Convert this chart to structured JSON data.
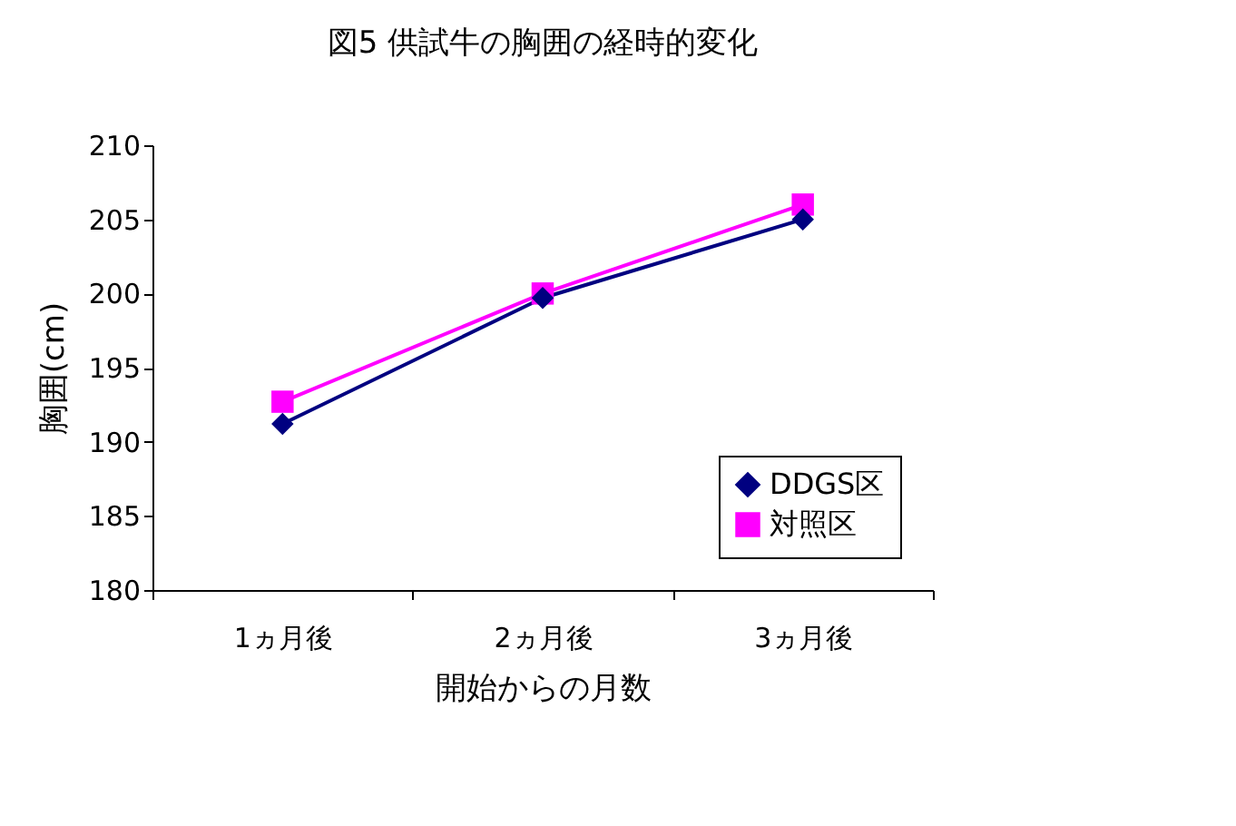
{
  "chart_data": {
    "type": "line",
    "title": "図5  供試牛の胸囲の経時的変化",
    "xlabel": "開始からの月数",
    "ylabel": "胸囲(cm)",
    "categories": [
      "1ヵ月後",
      "2ヵ月後",
      "3ヵ月後"
    ],
    "series": [
      {
        "name": "DDGS区",
        "color": "#000080",
        "marker": "diamond",
        "values": [
          191.2,
          199.7,
          205.0
        ]
      },
      {
        "name": "対照区",
        "color": "#ff00ff",
        "marker": "square",
        "values": [
          192.7,
          200.0,
          206.0
        ]
      }
    ],
    "ylim": [
      180,
      210
    ],
    "yticks": [
      180,
      185,
      190,
      195,
      200,
      205,
      210
    ],
    "grid": false,
    "legend": "bottom right",
    "line_style": "solid"
  }
}
